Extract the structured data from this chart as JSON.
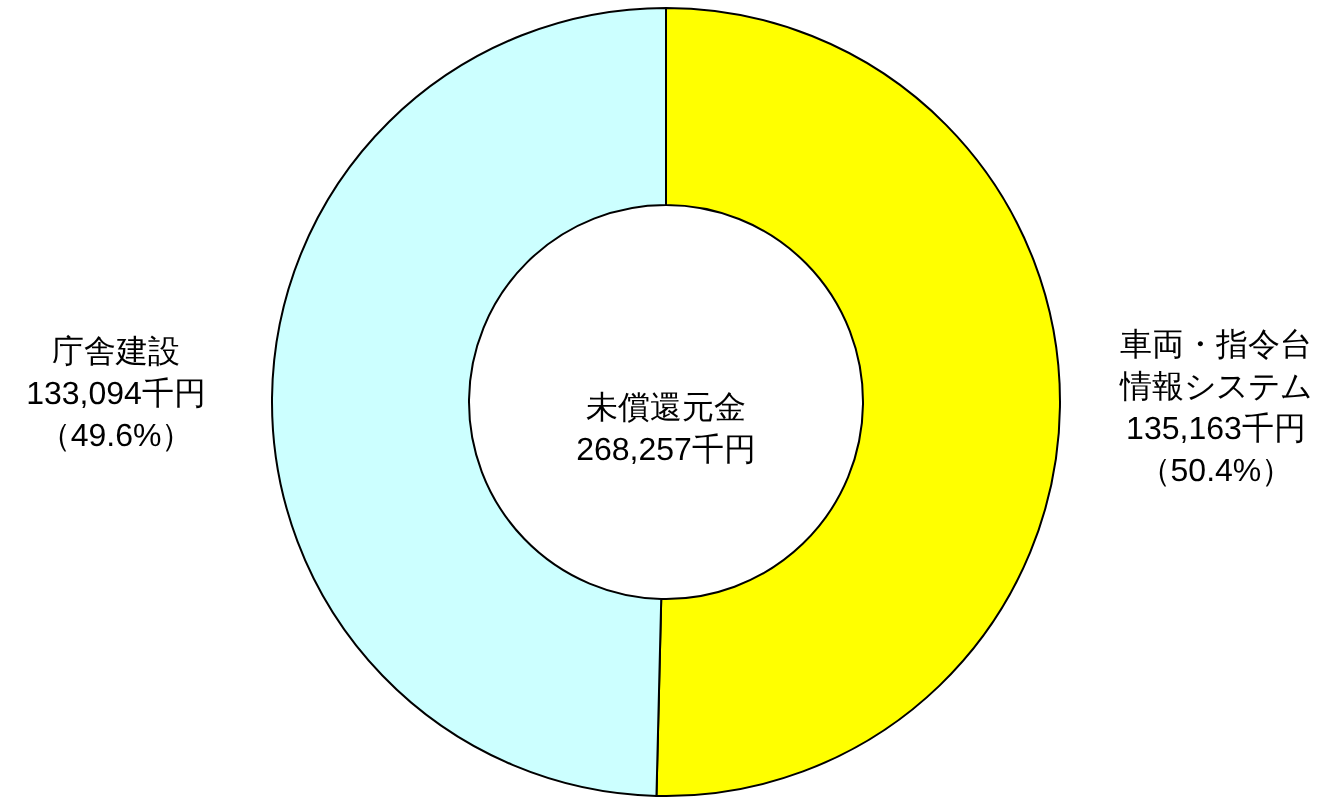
{
  "chart_data": {
    "type": "donut",
    "categories": [
      "車両・指令台情報システム",
      "庁舎建設"
    ],
    "values": [
      135163,
      133094
    ],
    "colors": [
      "#ffff00",
      "#ccffff"
    ],
    "value_labels": [
      "135,163千円（50.4%）",
      "133,094千円（49.6%）"
    ],
    "annotations": [
      "未償還元金\n268,257千円"
    ]
  }
}
